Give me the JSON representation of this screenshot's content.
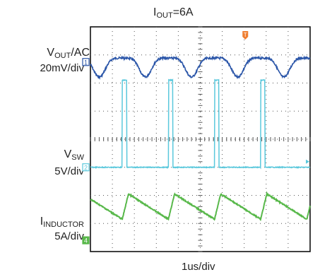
{
  "title": {
    "main": "I",
    "sub": "OUT",
    "rest": "=6A"
  },
  "channels": [
    {
      "id": "vout",
      "name_main": "V",
      "name_sub": "OUT",
      "name_rest": "/AC",
      "scale": "20mV/div",
      "marker": "1",
      "color": "#2a55a8"
    },
    {
      "id": "vsw",
      "name_main": "V",
      "name_sub": "SW",
      "name_rest": "",
      "scale": "5V/div",
      "marker": "2",
      "color": "#5ac8dc"
    },
    {
      "id": "il",
      "name_main": "I",
      "name_sub": "INDUCTOR",
      "name_rest": "",
      "scale": "5A/div",
      "marker": "4",
      "color": "#58b84a"
    }
  ],
  "trigger_marker": "T",
  "trigger_color": "#ef7d2f",
  "xlabel": "1us/div",
  "chart_data": {
    "type": "line",
    "x_divisions": 10,
    "y_divisions": 8,
    "period_div": 2.1,
    "switch_pulse_width_div": 0.2,
    "switch_edges_div": [
      1.45,
      3.55,
      5.65,
      7.75
    ],
    "series": [
      {
        "name": "VOUT/AC",
        "waveform": "ripple",
        "amplitude_div": 0.75
      },
      {
        "name": "VSW",
        "waveform": "pulse",
        "amplitude_div": 3.1
      },
      {
        "name": "IINDUCTOR",
        "waveform": "triangle",
        "amplitude_div": 0.45
      }
    ]
  }
}
